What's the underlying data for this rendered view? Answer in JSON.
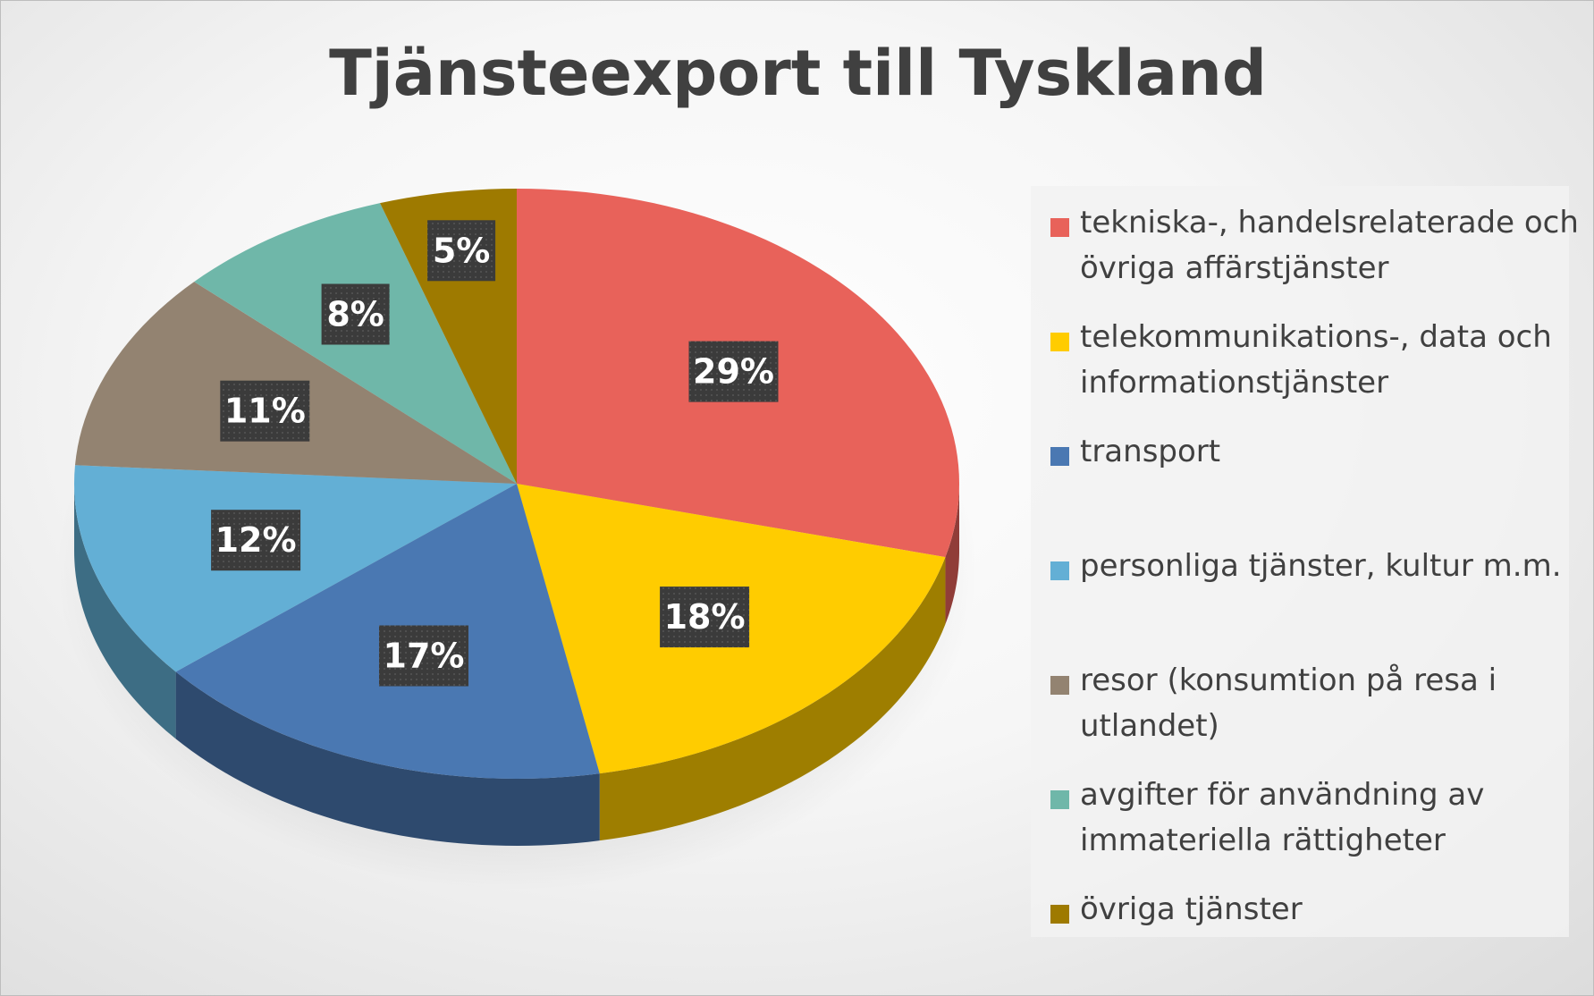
{
  "chart_data": {
    "type": "pie",
    "title": "Tjänsteexport till Tyskland",
    "legend_position": "right",
    "slices": [
      {
        "label": "tekniska-, handelsrelaterade och övriga affärstjänster",
        "value": 29,
        "display": "29%",
        "color": "#E8625A"
      },
      {
        "label": "telekommunikations-, data och informationstjänster",
        "value": 18,
        "display": "18%",
        "color": "#FFCC00"
      },
      {
        "label": "transport",
        "value": 17,
        "display": "17%",
        "color": "#4A78B2"
      },
      {
        "label": "personliga tjänster, kultur m.m.",
        "value": 12,
        "display": "12%",
        "color": "#63AFD5"
      },
      {
        "label": "resor (konsumtion på resa i utlandet)",
        "value": 11,
        "display": "11%",
        "color": "#938371"
      },
      {
        "label": "avgifter för användning av immateriella rättigheter",
        "value": 8,
        "display": "8%",
        "color": "#6FB7A9"
      },
      {
        "label": "övriga tjänster",
        "value": 5,
        "display": "5%",
        "color": "#9E7A00"
      }
    ]
  }
}
